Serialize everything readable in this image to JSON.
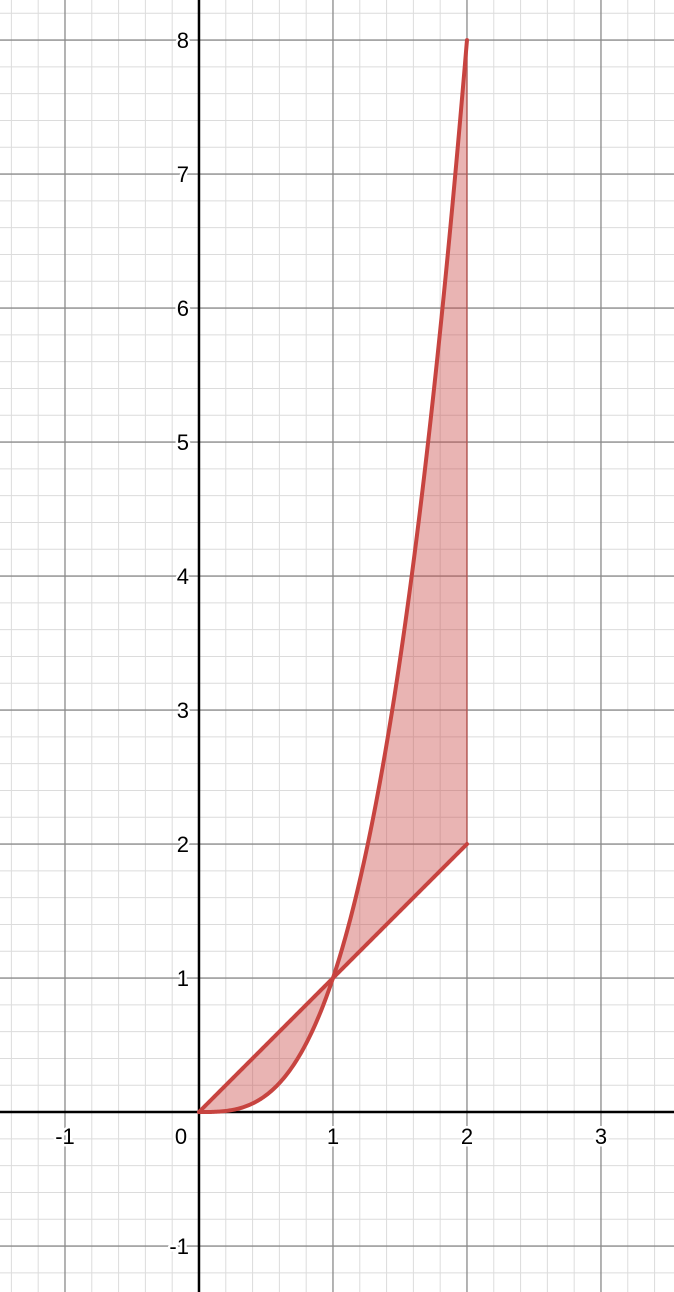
{
  "chart_data": {
    "type": "line",
    "xlim": [
      -1.485,
      3.545
    ],
    "ylim": [
      -1.343,
      8.299
    ],
    "grid": true,
    "major_step": 1,
    "minor_step": 0.2,
    "x_ticks": [
      -1,
      0,
      1,
      2,
      3
    ],
    "y_ticks": [
      -1,
      1,
      2,
      3,
      4,
      5,
      6,
      7,
      8
    ],
    "x_tick_labels": [
      "-1",
      "0",
      "1",
      "2",
      "3"
    ],
    "y_tick_labels": [
      "-1",
      "1",
      "2",
      "3",
      "4",
      "5",
      "6",
      "7",
      "8"
    ],
    "series": [
      {
        "expression": "y = x^3",
        "domain": [
          0,
          2
        ],
        "color": "#c74440"
      },
      {
        "expression": "y = x",
        "domain": [
          0,
          2
        ],
        "color": "#c74440"
      }
    ],
    "shaded_region": {
      "between": [
        "x^3",
        "x"
      ],
      "domain": [
        0,
        2
      ],
      "color": "#c74440",
      "opacity": 0.4
    },
    "vertical_segment": {
      "x": 2,
      "from": 2,
      "to": 8,
      "color": "#c74440"
    }
  }
}
